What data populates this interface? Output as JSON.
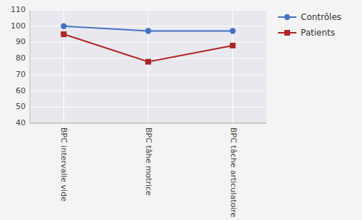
{
  "chart_data": {
    "type": "line",
    "categories": [
      "BPC intervalle vide",
      "BPC tâhe motrice",
      "BPC tâche articulatoire"
    ],
    "series": [
      {
        "name": "Contrôles",
        "color": "#4472C4",
        "marker": "circle",
        "values": [
          100,
          97,
          97
        ]
      },
      {
        "name": "Patients",
        "color": "#B22222",
        "marker": "square",
        "values": [
          95,
          78,
          88
        ]
      }
    ],
    "ylim": [
      40,
      110
    ],
    "yticks": [
      40,
      50,
      60,
      70,
      80,
      90,
      100,
      110
    ],
    "grid": true,
    "legend": "right"
  }
}
